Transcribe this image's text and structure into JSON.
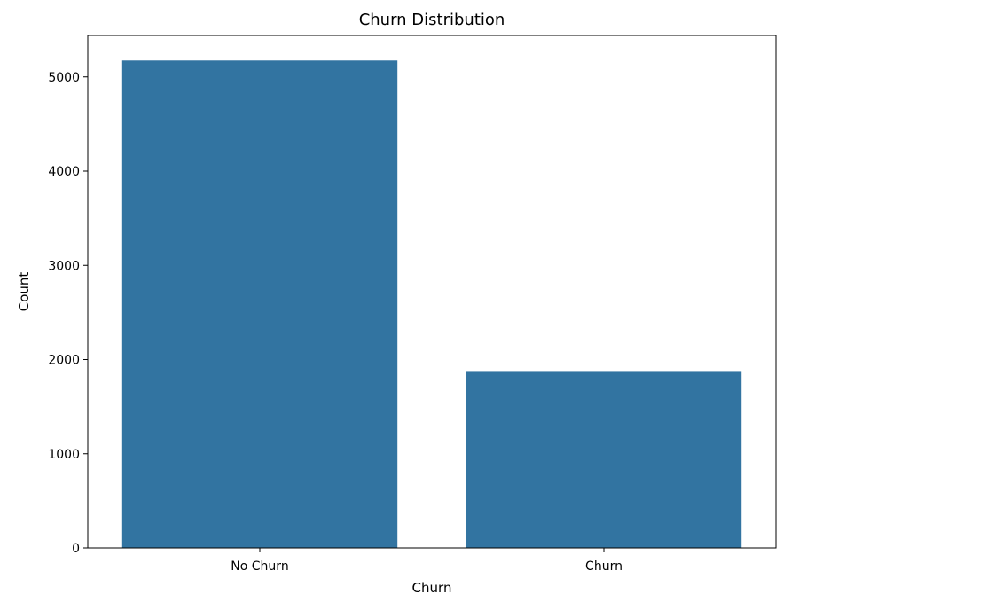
{
  "chart_data": {
    "type": "bar",
    "title": "Churn Distribution",
    "xlabel": "Churn",
    "ylabel": "Count",
    "categories": [
      "No Churn",
      "Churn"
    ],
    "values": [
      5174,
      1869
    ],
    "ylim": [
      0,
      5440
    ],
    "yticks": [
      0,
      1000,
      2000,
      3000,
      4000,
      5000
    ],
    "grid": false,
    "legend": "none",
    "bar_color": "#3274a1"
  }
}
